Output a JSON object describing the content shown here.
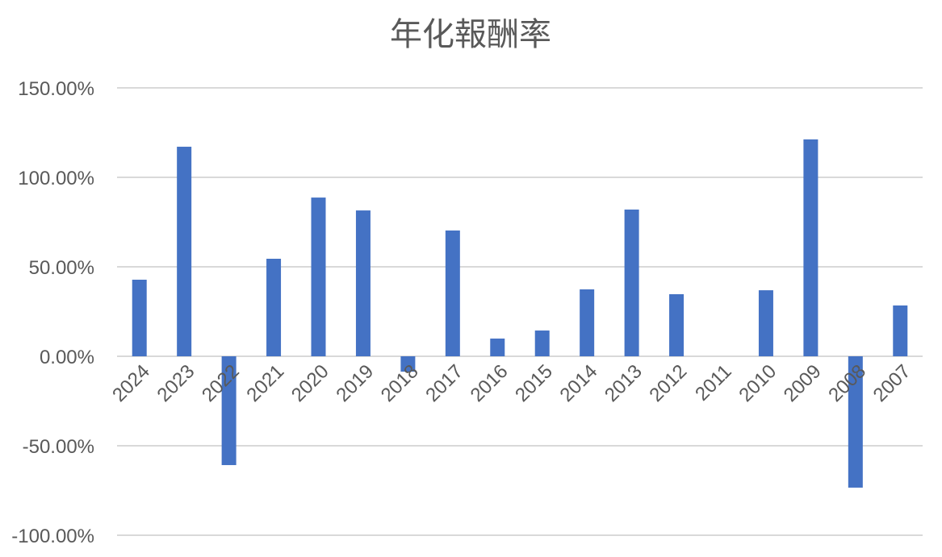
{
  "chart_data": {
    "type": "bar",
    "title": "年化報酬率",
    "xlabel": "",
    "ylabel": "",
    "categories": [
      "2024",
      "2023",
      "2022",
      "2021",
      "2020",
      "2019",
      "2018",
      "2017",
      "2016",
      "2015",
      "2014",
      "2013",
      "2012",
      "2011",
      "2010",
      "2009",
      "2008",
      "2007"
    ],
    "values": [
      42.8,
      117.1,
      -60.8,
      54.5,
      88.7,
      81.5,
      -8.6,
      70.3,
      9.9,
      14.4,
      37.4,
      82.0,
      34.7,
      0,
      36.9,
      121.2,
      -73.4,
      28.4
    ],
    "value_unit": "%",
    "ylim": [
      -100,
      150
    ],
    "yticks": [
      150,
      100,
      50,
      0,
      -50,
      -100
    ],
    "ytick_labels": [
      "150.00%",
      "100.00%",
      "50.00%",
      "0.00%",
      "-50.00%",
      "-100.00%"
    ],
    "grid": true,
    "legend": "none",
    "colors": {
      "bar": "#4472C4",
      "grid": "#D9D9D9",
      "text": "#595959"
    }
  }
}
